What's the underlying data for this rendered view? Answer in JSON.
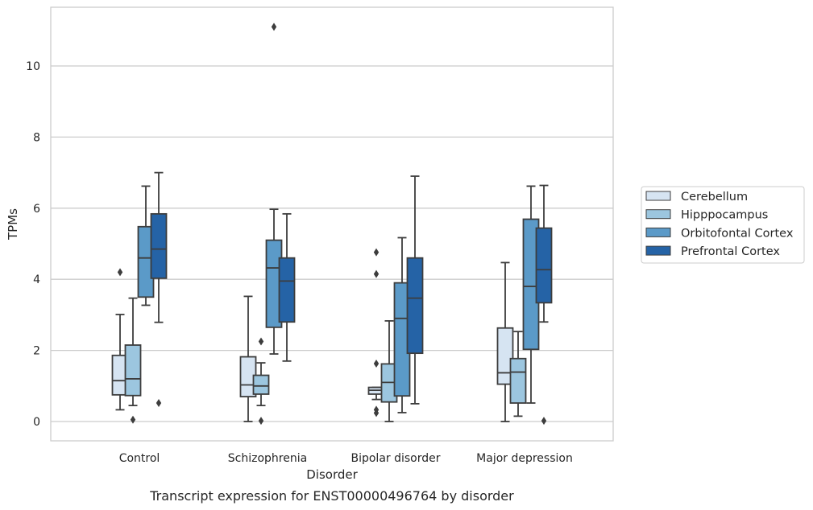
{
  "caption": "Transcript expression for ENST00000496764 by disorder",
  "chart_data": {
    "type": "box",
    "xlabel": "Disorder",
    "ylabel": "TPMs",
    "ylim": [
      -0.5,
      11.75
    ],
    "yticks": [
      0,
      2,
      4,
      6,
      8,
      10
    ],
    "grid": "horizontal",
    "legend_position": "right",
    "categories": [
      "Control",
      "Schizophrenia",
      "Bipolar disorder",
      "Major depression"
    ],
    "series": [
      {
        "name": "Cerebellum",
        "color": "#d6e4f2",
        "boxes": [
          {
            "whisker_low": 0.33,
            "q1": 0.75,
            "median": 1.15,
            "q3": 1.86,
            "whisker_high": 3.01,
            "outliers": [
              4.2
            ]
          },
          {
            "whisker_low": 0.0,
            "q1": 0.7,
            "median": 1.03,
            "q3": 1.82,
            "whisker_high": 3.52,
            "outliers": []
          },
          {
            "whisker_low": 0.62,
            "q1": 0.77,
            "median": 0.88,
            "q3": 0.96,
            "whisker_high": 0.96,
            "outliers": [
              4.76,
              4.15,
              1.63,
              0.33,
              0.24
            ]
          },
          {
            "whisker_low": 0.0,
            "q1": 1.05,
            "median": 1.37,
            "q3": 2.63,
            "whisker_high": 4.47,
            "outliers": []
          }
        ]
      },
      {
        "name": "Hipppocampus",
        "color": "#9cc6df",
        "boxes": [
          {
            "whisker_low": 0.45,
            "q1": 0.73,
            "median": 1.2,
            "q3": 2.15,
            "whisker_high": 3.47,
            "outliers": [
              0.05
            ]
          },
          {
            "whisker_low": 0.45,
            "q1": 0.77,
            "median": 1.0,
            "q3": 1.3,
            "whisker_high": 1.65,
            "outliers": [
              2.25,
              0.02
            ]
          },
          {
            "whisker_low": 0.0,
            "q1": 0.55,
            "median": 1.1,
            "q3": 1.62,
            "whisker_high": 2.83,
            "outliers": []
          },
          {
            "whisker_low": 0.15,
            "q1": 0.52,
            "median": 1.39,
            "q3": 1.77,
            "whisker_high": 2.53,
            "outliers": []
          }
        ]
      },
      {
        "name": "Orbitofontal Cortex",
        "color": "#5b9ac8",
        "boxes": [
          {
            "whisker_low": 3.27,
            "q1": 3.5,
            "median": 4.6,
            "q3": 5.48,
            "whisker_high": 6.62,
            "outliers": []
          },
          {
            "whisker_low": 1.9,
            "q1": 2.65,
            "median": 4.32,
            "q3": 5.1,
            "whisker_high": 5.97,
            "outliers": [
              11.1
            ]
          },
          {
            "whisker_low": 0.25,
            "q1": 0.72,
            "median": 2.9,
            "q3": 3.9,
            "whisker_high": 5.17,
            "outliers": []
          },
          {
            "whisker_low": 0.52,
            "q1": 2.03,
            "median": 3.8,
            "q3": 5.69,
            "whisker_high": 6.62,
            "outliers": []
          }
        ]
      },
      {
        "name": "Prefrontal Cortex",
        "color": "#2563a6",
        "boxes": [
          {
            "whisker_low": 2.79,
            "q1": 4.03,
            "median": 4.85,
            "q3": 5.84,
            "whisker_high": 7.0,
            "outliers": [
              0.52
            ]
          },
          {
            "whisker_low": 1.7,
            "q1": 2.8,
            "median": 3.95,
            "q3": 4.6,
            "whisker_high": 5.84,
            "outliers": []
          },
          {
            "whisker_low": 0.5,
            "q1": 1.92,
            "median": 3.47,
            "q3": 4.6,
            "whisker_high": 6.9,
            "outliers": []
          },
          {
            "whisker_low": 2.8,
            "q1": 3.34,
            "median": 4.27,
            "q3": 5.44,
            "whisker_high": 6.64,
            "outliers": [
              0.02
            ]
          }
        ]
      }
    ]
  }
}
